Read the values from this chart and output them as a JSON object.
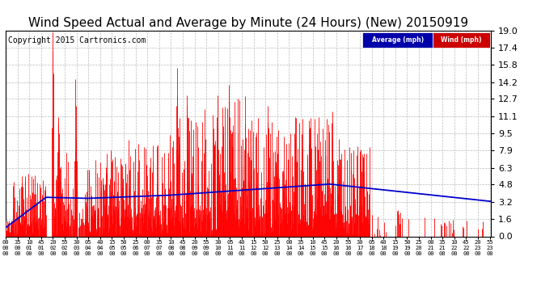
{
  "title": "Wind Speed Actual and Average by Minute (24 Hours) (New) 20150919",
  "copyright": "Copyright 2015 Cartronics.com",
  "yticks": [
    0.0,
    1.6,
    3.2,
    4.8,
    6.3,
    7.9,
    9.5,
    11.1,
    12.7,
    14.2,
    15.8,
    17.4,
    19.0
  ],
  "ymin": 0.0,
  "ymax": 19.0,
  "bg_color": "#ffffff",
  "grid_color": "#bbbbbb",
  "wind_color": "#ff0000",
  "avg_color": "#0000cc",
  "legend_avg_bg": "#0000aa",
  "legend_wind_bg": "#cc0000",
  "title_fontsize": 11,
  "copyright_fontsize": 7
}
